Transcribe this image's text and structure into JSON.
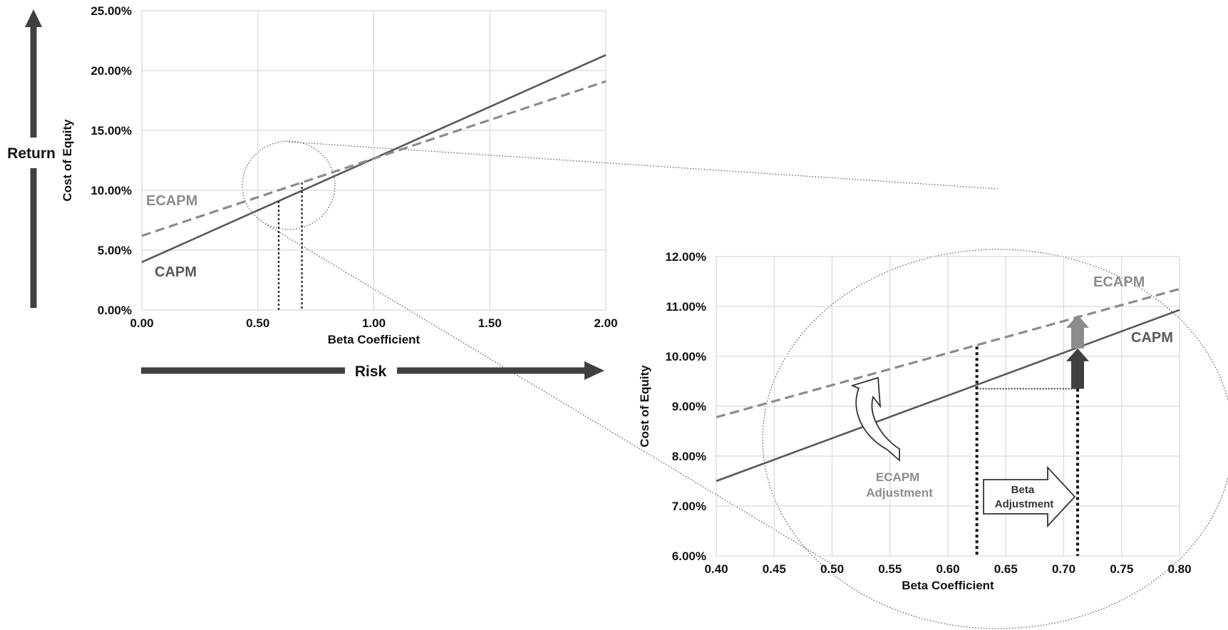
{
  "colors": {
    "capm": "#595959",
    "ecapm": "#8c8c8c",
    "arrow_dark": "#404040",
    "grid": "#d9d9d9"
  },
  "left_axis_label": "Return",
  "bottom_axis_label": "Risk",
  "annotations": {
    "ecapm_adjustment": [
      "ECAPM",
      "Adjustment"
    ],
    "beta_adjustment": [
      "Beta",
      "Adjustment"
    ]
  },
  "chart_data": [
    {
      "type": "line",
      "title": "",
      "xlabel": "Beta Coefficient",
      "ylabel": "Cost of Equity",
      "xlim": [
        0,
        2
      ],
      "ylim": [
        0,
        25
      ],
      "x_ticks": [
        0,
        0.5,
        1,
        1.5,
        2
      ],
      "x_tick_labels": [
        "0.00",
        "0.50",
        "1.00",
        "1.50",
        "2.00"
      ],
      "y_ticks": [
        0,
        5,
        10,
        15,
        20,
        25
      ],
      "y_tick_labels": [
        "0.00%",
        "5.00%",
        "10.00%",
        "15.00%",
        "20.00%",
        "25.00%"
      ],
      "grid": true,
      "series": [
        {
          "name": "CAPM",
          "style": "solid",
          "x": [
            0,
            2
          ],
          "y": [
            4.0,
            21.3
          ]
        },
        {
          "name": "ECAPM",
          "style": "dashed",
          "x": [
            0,
            2
          ],
          "y": [
            6.2,
            19.1
          ]
        }
      ],
      "markers_x": [
        0.59,
        0.69
      ]
    },
    {
      "type": "line",
      "title": "",
      "xlabel": "Beta Coefficient",
      "ylabel": "Cost of Equity",
      "xlim": [
        0.4,
        0.8
      ],
      "ylim": [
        6,
        12
      ],
      "x_ticks": [
        0.4,
        0.45,
        0.5,
        0.55,
        0.6,
        0.65,
        0.7,
        0.75,
        0.8
      ],
      "x_tick_labels": [
        "0.40",
        "0.45",
        "0.50",
        "0.55",
        "0.60",
        "0.65",
        "0.70",
        "0.75",
        "0.80"
      ],
      "y_ticks": [
        6,
        7,
        8,
        9,
        10,
        11,
        12
      ],
      "y_tick_labels": [
        "6.00%",
        "7.00%",
        "8.00%",
        "9.00%",
        "10.00%",
        "11.00%",
        "12.00%"
      ],
      "grid": true,
      "series": [
        {
          "name": "CAPM",
          "style": "solid",
          "x": [
            0.4,
            0.8
          ],
          "y": [
            7.5,
            10.93
          ]
        },
        {
          "name": "ECAPM",
          "style": "dashed",
          "x": [
            0.4,
            0.8
          ],
          "y": [
            8.78,
            11.35
          ]
        }
      ],
      "markers_x": [
        0.625,
        0.712
      ],
      "capm_at_beta_start": 9.35,
      "capm_at_beta_end": 10.13,
      "ecapm_at_beta_end": 10.83
    }
  ]
}
